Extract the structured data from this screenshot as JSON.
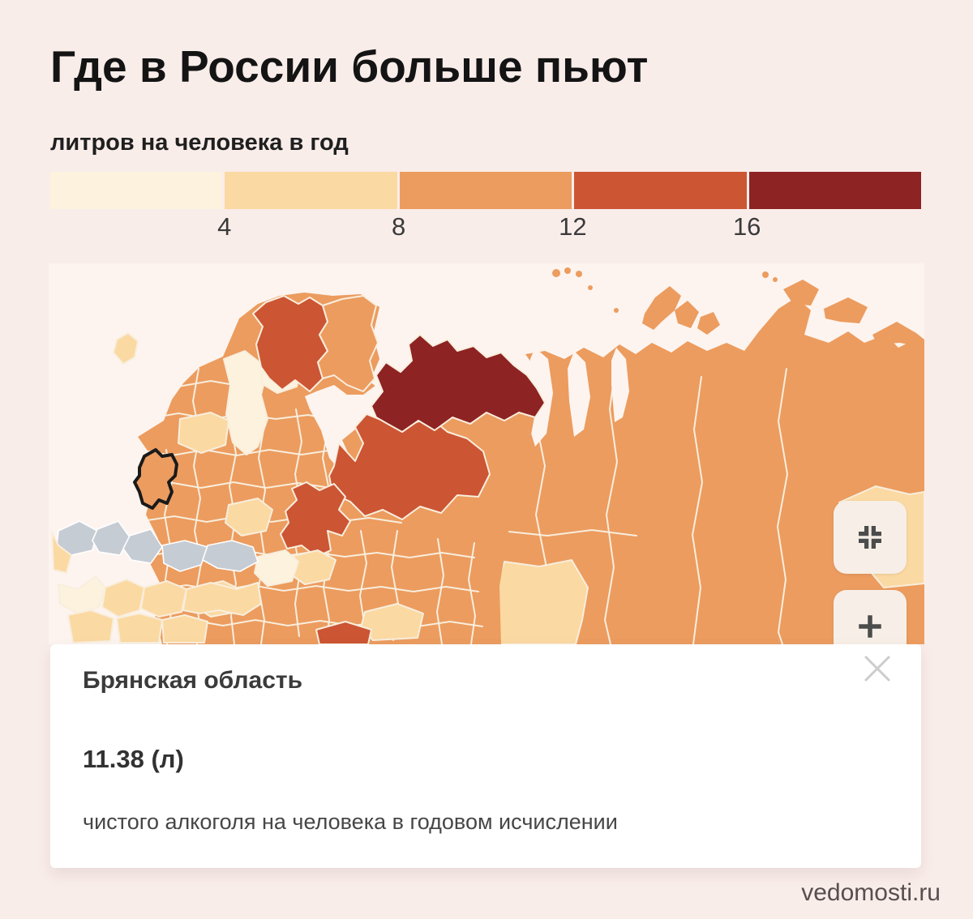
{
  "page": {
    "title": "Где в России больше пьют",
    "subtitle": "литров на человека в год",
    "watermark": "vedomosti.ru",
    "background": "#f9edea"
  },
  "legend": {
    "tick_labels": [
      "4",
      "8",
      "12",
      "16"
    ],
    "colors": {
      "level1": "#fdf2de",
      "level2": "#fbd9a2",
      "level3": "#ec9c5f",
      "level4": "#cc5534",
      "level5": "#8e2323",
      "sea": "#fdf4ef",
      "foreign": "#c6ccd4",
      "region_border": "#f8eedd",
      "selected_outline": "#1a1a1a"
    }
  },
  "map": {
    "selected_region": "Брянская область",
    "controls": {
      "fit_icon": "compress-icon",
      "zoom_in_icon": "plus-icon"
    }
  },
  "infocard": {
    "title": "Брянская область",
    "value": "11.38 (л)",
    "caption": "чистого алкоголя на человека в годовом исчислении",
    "close_icon": "close-x"
  },
  "chart_data": {
    "type": "choropleth_map",
    "title": "Где в России больше пьют",
    "unit_label": "литров на человека в год",
    "legend_stops": [
      4,
      8,
      12,
      16
    ],
    "legend_colors": [
      "#fdf2de",
      "#fbd9a2",
      "#ec9c5f",
      "#cc5534",
      "#8e2323"
    ],
    "legend_bins": [
      "<4",
      "4–8",
      "8–12",
      "12–16",
      ">16"
    ],
    "selected_region": {
      "name": "Брянская область",
      "value": 11.38,
      "unit": "л",
      "note": "чистого алкоголя на человека в годовом исчислении"
    }
  }
}
